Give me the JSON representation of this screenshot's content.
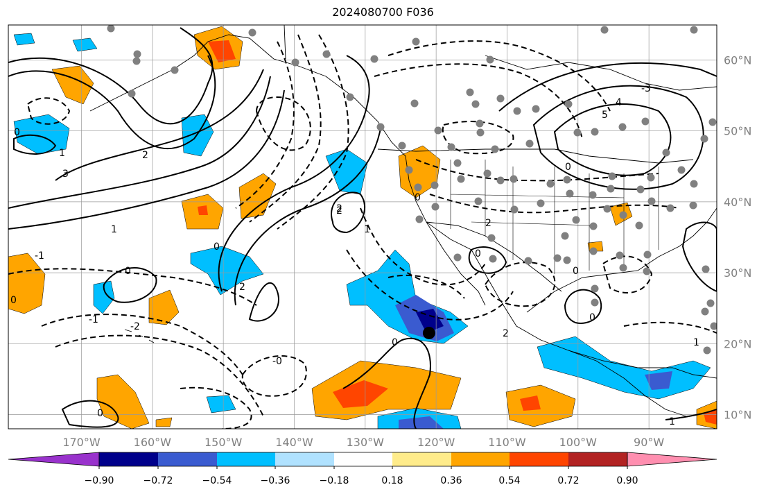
{
  "title": "2024080700 F036",
  "map": {
    "lon_ticks": [
      "170°W",
      "160°W",
      "150°W",
      "140°W",
      "130°W",
      "120°W",
      "110°W",
      "100°W",
      "90°W"
    ],
    "lat_ticks": [
      "60°N",
      "50°N",
      "40°N",
      "30°N",
      "20°N",
      "10°N"
    ],
    "marker": {
      "lon": -121,
      "lat": 21.5,
      "color": "#000000"
    },
    "station_dot_color": "#808080",
    "contour_labels": [
      "1",
      "2",
      "3",
      "0",
      "-0",
      "-1",
      "-2",
      "5",
      "4",
      "-3"
    ]
  },
  "colorbar": {
    "colors": [
      "#9932cc",
      "#00008b",
      "#3a5bd0",
      "#00bfff",
      "#b0e2ff",
      "#ffffff",
      "#ffec8b",
      "#ffa500",
      "#ff4500",
      "#b22222",
      "#ff8fb0"
    ],
    "tick_labels": [
      "−0.90",
      "−0.72",
      "−0.54",
      "−0.36",
      "−0.18",
      "0.18",
      "0.36",
      "0.54",
      "0.72",
      "0.90"
    ]
  }
}
